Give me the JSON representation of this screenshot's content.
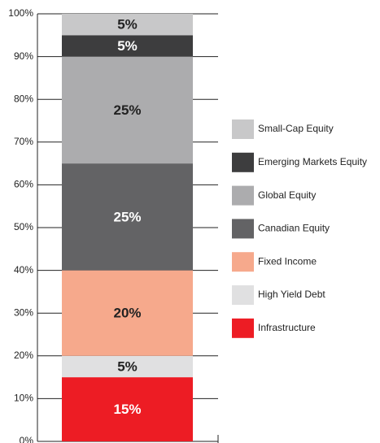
{
  "chart_data": {
    "type": "stacked-bar",
    "categories": [
      null
    ],
    "series": [
      {
        "name": "Infrastructure",
        "color": "#ed1c24",
        "values": [
          15
        ],
        "value_labels": [
          "15%"
        ]
      },
      {
        "name": "High Yield Debt",
        "color": "#e0e0e1",
        "values": [
          5
        ],
        "value_labels": [
          "5%"
        ]
      },
      {
        "name": "Fixed Income",
        "color": "#f6a98c",
        "values": [
          20
        ],
        "value_labels": [
          "20%"
        ]
      },
      {
        "name": "Canadian Equity",
        "color": "#636365",
        "values": [
          25
        ],
        "value_labels": [
          "25%"
        ]
      },
      {
        "name": "Global Equity",
        "color": "#acacae",
        "values": [
          25
        ],
        "value_labels": [
          "25%"
        ]
      },
      {
        "name": "Emerging Markets Equity",
        "color": "#3d3d3e",
        "values": [
          5
        ],
        "value_labels": [
          "5%"
        ]
      },
      {
        "name": "Small-Cap Equity",
        "color": "#c8c8c9",
        "values": [
          5
        ],
        "value_labels": [
          "5%"
        ]
      }
    ],
    "ylim": [
      0,
      100
    ],
    "yticks": [
      {
        "value": 0,
        "label": "0%"
      },
      {
        "value": 10,
        "label": "10%"
      },
      {
        "value": 20,
        "label": "20%"
      },
      {
        "value": 30,
        "label": "30%"
      },
      {
        "value": 40,
        "label": "40%"
      },
      {
        "value": 50,
        "label": "50%"
      },
      {
        "value": 60,
        "label": "60%"
      },
      {
        "value": 70,
        "label": "70%"
      },
      {
        "value": 80,
        "label": "80%"
      },
      {
        "value": 90,
        "label": "90%"
      },
      {
        "value": 100,
        "label": "100%"
      }
    ],
    "grid": true,
    "legend": "right"
  }
}
